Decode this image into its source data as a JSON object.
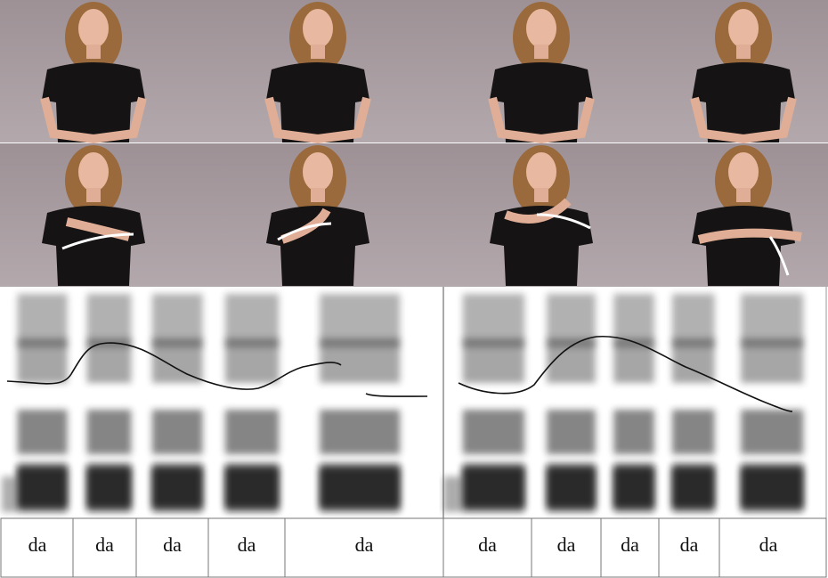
{
  "syllables": [
    "da",
    "da",
    "da",
    "da",
    "da",
    "da",
    "da",
    "da",
    "da",
    "da"
  ]
}
